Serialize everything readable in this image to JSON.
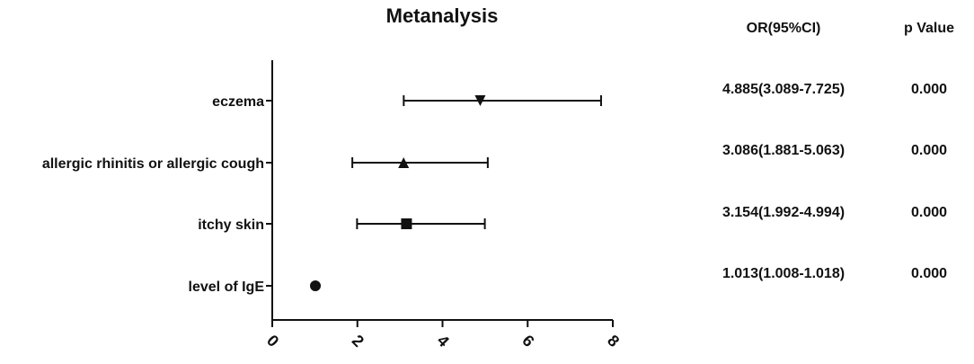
{
  "chart_data": {
    "type": "scatter",
    "title": "Metanalysis",
    "xlim": [
      0,
      8
    ],
    "x_ticks": [
      "0",
      "2",
      "4",
      "6",
      "8"
    ],
    "categories": [
      "eczema",
      "allergic rhinitis or allergic cough",
      "itchy skin",
      "level of IgE"
    ],
    "markers": [
      "triangle-down",
      "triangle-up",
      "square",
      "circle"
    ],
    "series": [
      {
        "values": [
          4.885,
          3.086,
          3.154,
          1.013
        ],
        "lower": [
          3.089,
          1.881,
          1.992,
          1.008
        ],
        "upper": [
          7.725,
          5.063,
          4.994,
          1.018
        ]
      }
    ],
    "table": {
      "headers": [
        "OR(95%CI)",
        "p Value"
      ],
      "or_ci": [
        "4.885(3.089-7.725)",
        "3.086(1.881-5.063)",
        "3.154(1.992-4.994)",
        "1.013(1.008-1.018)"
      ],
      "p_values": [
        "0.000",
        "0.000",
        "0.000",
        "0.000"
      ]
    },
    "colors": {
      "ink": "#111111",
      "background": "#ffffff"
    }
  }
}
